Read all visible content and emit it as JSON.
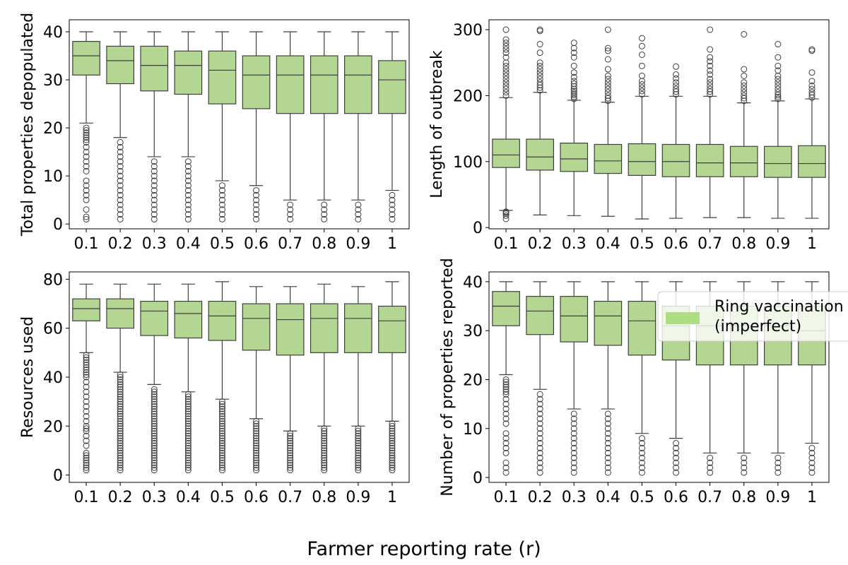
{
  "figure": {
    "xlabel": "Farmer reporting rate (r)",
    "box_color": "#b3d693",
    "legend": {
      "label_line1": "Ring vaccination",
      "label_line2": "(imperfect)",
      "color": "#aede81",
      "placement": "upper-right of bottom-right panel, clipped at figure edge"
    }
  },
  "chart_data": [
    {
      "type": "box",
      "panel": "top-left",
      "ylabel": "Total properties depopulated",
      "categories": [
        "0.1",
        "0.2",
        "0.3",
        "0.4",
        "0.5",
        "0.6",
        "0.7",
        "0.8",
        "0.9",
        "1"
      ],
      "ylim": [
        -1,
        42.5
      ],
      "yticks": [
        0,
        10,
        20,
        30,
        40
      ],
      "boxes": [
        {
          "q1": 31,
          "median": 35,
          "q3": 38,
          "whislo": 21,
          "whishi": 40,
          "fliers": [
            1,
            1.5,
            3,
            5,
            6,
            7,
            8,
            9,
            11,
            12,
            13,
            14,
            15,
            16,
            17,
            17.5,
            18,
            18.5,
            19,
            19.5,
            20
          ]
        },
        {
          "q1": 29.2,
          "median": 34,
          "q3": 37,
          "whislo": 18,
          "whishi": 40,
          "fliers": [
            1,
            2,
            3,
            4,
            5,
            6,
            7,
            8,
            9,
            10,
            11,
            12,
            13,
            14,
            15,
            16,
            17
          ]
        },
        {
          "q1": 27.7,
          "median": 33,
          "q3": 37,
          "whislo": 14,
          "whishi": 40,
          "fliers": [
            1,
            2,
            3,
            4,
            5,
            6,
            7,
            8,
            9,
            10,
            11,
            12,
            13
          ]
        },
        {
          "q1": 27,
          "median": 33,
          "q3": 36,
          "whislo": 14,
          "whishi": 40,
          "fliers": [
            1,
            2,
            3,
            4,
            5,
            6,
            7,
            8,
            9,
            10,
            11,
            12,
            13
          ]
        },
        {
          "q1": 25,
          "median": 32,
          "q3": 36,
          "whislo": 9,
          "whishi": 40,
          "fliers": [
            1,
            2,
            3,
            4,
            5,
            6,
            7,
            8
          ]
        },
        {
          "q1": 24,
          "median": 31,
          "q3": 35,
          "whislo": 8,
          "whishi": 40,
          "fliers": [
            1,
            2,
            3,
            4,
            5,
            6,
            7
          ]
        },
        {
          "q1": 23,
          "median": 31,
          "q3": 35,
          "whislo": 5,
          "whishi": 40,
          "fliers": [
            1,
            2,
            3,
            4
          ]
        },
        {
          "q1": 23,
          "median": 31,
          "q3": 35,
          "whislo": 5,
          "whishi": 40,
          "fliers": [
            1,
            2,
            3,
            4
          ]
        },
        {
          "q1": 23,
          "median": 31,
          "q3": 35,
          "whislo": 5,
          "whishi": 40,
          "fliers": [
            1,
            2,
            3,
            4
          ]
        },
        {
          "q1": 23,
          "median": 30,
          "q3": 34,
          "whislo": 7,
          "whishi": 40,
          "fliers": [
            1,
            2,
            3,
            4,
            5,
            6
          ]
        }
      ]
    },
    {
      "type": "box",
      "panel": "top-right",
      "ylabel": "Length of outbreak",
      "categories": [
        "0.1",
        "0.2",
        "0.3",
        "0.4",
        "0.5",
        "0.6",
        "0.7",
        "0.8",
        "0.9",
        "1"
      ],
      "ylim": [
        -2,
        315
      ],
      "yticks": [
        0,
        100,
        200,
        300
      ],
      "boxes": [
        {
          "q1": 91,
          "median": 110,
          "q3": 134,
          "whislo": 26,
          "whishi": 197,
          "fliers": [
            13,
            18,
            21,
            23,
            24,
            200,
            205,
            210,
            215,
            220,
            225,
            230,
            235,
            240,
            245,
            250,
            258,
            265,
            270,
            275,
            280,
            285,
            300
          ]
        },
        {
          "q1": 87,
          "median": 107,
          "q3": 134,
          "whislo": 19,
          "whishi": 205,
          "fliers": [
            208,
            212,
            216,
            220,
            225,
            230,
            235,
            240,
            245,
            250,
            265,
            278,
            298,
            300
          ]
        },
        {
          "q1": 85,
          "median": 104,
          "q3": 128,
          "whislo": 18,
          "whishi": 193,
          "fliers": [
            195,
            198,
            201,
            204,
            207,
            210,
            214,
            218,
            222,
            228,
            235,
            245,
            258,
            265,
            272,
            280
          ]
        },
        {
          "q1": 82,
          "median": 101,
          "q3": 126,
          "whislo": 17,
          "whishi": 190,
          "fliers": [
            192,
            196,
            200,
            205,
            210,
            215,
            220,
            225,
            230,
            240,
            255,
            268,
            272,
            300
          ]
        },
        {
          "q1": 79,
          "median": 100,
          "q3": 127,
          "whislo": 13,
          "whishi": 199,
          "fliers": [
            202,
            207,
            212,
            217,
            222,
            230,
            245,
            262,
            275,
            287
          ]
        },
        {
          "q1": 77,
          "median": 100,
          "q3": 126,
          "whislo": 14,
          "whishi": 199,
          "fliers": [
            202,
            206,
            210,
            215,
            220,
            226,
            232,
            244
          ]
        },
        {
          "q1": 77,
          "median": 98,
          "q3": 126,
          "whislo": 15,
          "whishi": 199,
          "fliers": [
            202,
            206,
            210,
            215,
            220,
            225,
            232,
            238,
            245,
            252,
            258,
            270,
            300
          ]
        },
        {
          "q1": 77,
          "median": 98,
          "q3": 123,
          "whislo": 15,
          "whishi": 189,
          "fliers": [
            192,
            196,
            200,
            205,
            210,
            215,
            220,
            230,
            240,
            293
          ]
        },
        {
          "q1": 76,
          "median": 97,
          "q3": 123,
          "whislo": 14,
          "whishi": 192,
          "fliers": [
            195,
            198,
            201,
            205,
            210,
            215,
            220,
            225,
            230,
            238,
            245,
            258,
            278
          ]
        },
        {
          "q1": 76,
          "median": 97,
          "q3": 124,
          "whislo": 14,
          "whishi": 195,
          "fliers": [
            197,
            201,
            205,
            210,
            215,
            222,
            235,
            268,
            270
          ]
        }
      ]
    },
    {
      "type": "box",
      "panel": "bottom-left",
      "ylabel": "Resources used",
      "categories": [
        "0.1",
        "0.2",
        "0.3",
        "0.4",
        "0.5",
        "0.6",
        "0.7",
        "0.8",
        "0.9",
        "1"
      ],
      "ylim": [
        -3,
        83
      ],
      "yticks": [
        0,
        20,
        40,
        60,
        80
      ],
      "boxes": [
        {
          "q1": 63,
          "median": 68,
          "q3": 72,
          "whislo": 50,
          "whishi": 78,
          "fliers": [
            2,
            3,
            4,
            5,
            6,
            7,
            8,
            9,
            12,
            14,
            16,
            18,
            19,
            20,
            22,
            24,
            26,
            28,
            30,
            32,
            34,
            36,
            38,
            40,
            41,
            42,
            43,
            44,
            45,
            46,
            47,
            48,
            49
          ]
        },
        {
          "q1": 60,
          "median": 68,
          "q3": 72,
          "whislo": 42,
          "whishi": 78,
          "fliers": [
            2,
            3,
            4,
            5,
            6,
            7,
            8,
            9,
            10,
            11,
            12,
            13,
            14,
            15,
            16,
            17,
            18,
            19,
            20,
            21,
            22,
            23,
            24,
            25,
            26,
            27,
            28,
            29,
            30,
            31,
            32,
            33,
            34,
            35,
            36,
            37,
            38,
            39,
            40,
            41
          ]
        },
        {
          "q1": 57,
          "median": 67,
          "q3": 71,
          "whislo": 37,
          "whishi": 78,
          "fliers": [
            2,
            3,
            4,
            5,
            6,
            7,
            8,
            9,
            10,
            11,
            12,
            13,
            14,
            15,
            16,
            17,
            18,
            19,
            20,
            21,
            22,
            23,
            24,
            25,
            26,
            27,
            28,
            29,
            30,
            31,
            32,
            33,
            34,
            35
          ]
        },
        {
          "q1": 56,
          "median": 66,
          "q3": 71,
          "whislo": 34,
          "whishi": 78,
          "fliers": [
            2,
            3,
            4,
            5,
            6,
            7,
            8,
            9,
            10,
            11,
            12,
            13,
            14,
            15,
            16,
            17,
            18,
            19,
            20,
            21,
            22,
            23,
            24,
            25,
            26,
            27,
            28,
            29,
            30,
            31,
            32,
            33
          ]
        },
        {
          "q1": 55,
          "median": 65,
          "q3": 71,
          "whislo": 31,
          "whishi": 79,
          "fliers": [
            2,
            3,
            4,
            5,
            6,
            7,
            8,
            9,
            10,
            11,
            12,
            13,
            14,
            15,
            16,
            17,
            18,
            19,
            20,
            21,
            22,
            23,
            24,
            25,
            26,
            27,
            28,
            29,
            30
          ]
        },
        {
          "q1": 51,
          "median": 64,
          "q3": 70,
          "whislo": 23,
          "whishi": 77,
          "fliers": [
            2,
            3,
            4,
            5,
            6,
            7,
            8,
            9,
            10,
            11,
            12,
            13,
            14,
            15,
            16,
            17,
            18,
            19,
            20,
            21,
            22
          ]
        },
        {
          "q1": 49,
          "median": 63.5,
          "q3": 70,
          "whislo": 18,
          "whishi": 77,
          "fliers": [
            2,
            3,
            4,
            5,
            6,
            7,
            8,
            9,
            10,
            11,
            12,
            13,
            14,
            15,
            16,
            17
          ]
        },
        {
          "q1": 50,
          "median": 64,
          "q3": 70,
          "whislo": 20,
          "whishi": 78,
          "fliers": [
            2,
            3,
            4,
            5,
            6,
            7,
            8,
            9,
            10,
            11,
            12,
            13,
            14,
            15,
            16,
            17,
            18,
            19
          ]
        },
        {
          "q1": 50,
          "median": 64,
          "q3": 70,
          "whislo": 20,
          "whishi": 77,
          "fliers": [
            2,
            3,
            4,
            5,
            6,
            7,
            8,
            9,
            10,
            11,
            12,
            13,
            14,
            15,
            16,
            17,
            18,
            19
          ]
        },
        {
          "q1": 50,
          "median": 63,
          "q3": 69,
          "whislo": 22,
          "whishi": 79,
          "fliers": [
            2,
            3,
            4,
            5,
            6,
            7,
            8,
            9,
            10,
            11,
            12,
            13,
            14,
            15,
            16,
            17,
            18,
            19,
            20,
            21
          ]
        }
      ]
    },
    {
      "type": "box",
      "panel": "bottom-right",
      "ylabel": "Number of properties reported",
      "categories": [
        "0.1",
        "0.2",
        "0.3",
        "0.4",
        "0.5",
        "0.6",
        "0.7",
        "0.8",
        "0.9",
        "1"
      ],
      "ylim": [
        -1,
        42
      ],
      "yticks": [
        0,
        10,
        20,
        30,
        40
      ],
      "boxes": [
        {
          "q1": 31,
          "median": 35,
          "q3": 38,
          "whislo": 21,
          "whishi": 40,
          "fliers": [
            1,
            2,
            3,
            5,
            6,
            7,
            8,
            9,
            11,
            12,
            13,
            14,
            15,
            16,
            17,
            17.5,
            18,
            18.5,
            19,
            19.5,
            20
          ]
        },
        {
          "q1": 29.2,
          "median": 34,
          "q3": 37,
          "whislo": 18,
          "whishi": 40,
          "fliers": [
            1,
            2,
            3,
            4,
            5,
            6,
            7,
            8,
            9,
            10,
            11,
            12,
            13,
            14,
            15,
            16,
            17
          ]
        },
        {
          "q1": 27.7,
          "median": 33,
          "q3": 37,
          "whislo": 14,
          "whishi": 40,
          "fliers": [
            1,
            2,
            3,
            4,
            5,
            6,
            7,
            8,
            9,
            10,
            11,
            12,
            13
          ]
        },
        {
          "q1": 27,
          "median": 33,
          "q3": 36,
          "whislo": 14,
          "whishi": 40,
          "fliers": [
            1,
            2,
            3,
            4,
            5,
            6,
            7,
            8,
            9,
            10,
            11,
            12,
            13
          ]
        },
        {
          "q1": 25,
          "median": 32,
          "q3": 36,
          "whislo": 9,
          "whishi": 40,
          "fliers": [
            1,
            2,
            3,
            4,
            5,
            6,
            7,
            8
          ]
        },
        {
          "q1": 24,
          "median": 31,
          "q3": 35,
          "whislo": 8,
          "whishi": 40,
          "fliers": [
            1,
            2,
            3,
            4,
            5,
            6,
            7
          ]
        },
        {
          "q1": 23,
          "median": 31,
          "q3": 35,
          "whislo": 5,
          "whishi": 40,
          "fliers": [
            1,
            2,
            3,
            4
          ]
        },
        {
          "q1": 23,
          "median": 31,
          "q3": 35,
          "whislo": 5,
          "whishi": 40,
          "fliers": [
            1,
            2,
            3,
            4
          ]
        },
        {
          "q1": 23,
          "median": 31,
          "q3": 35,
          "whislo": 5,
          "whishi": 40,
          "fliers": [
            1,
            2,
            3,
            4
          ]
        },
        {
          "q1": 23,
          "median": 30,
          "q3": 35,
          "whislo": 7,
          "whishi": 40,
          "fliers": [
            1,
            2,
            3,
            4,
            5,
            6
          ]
        }
      ]
    }
  ]
}
